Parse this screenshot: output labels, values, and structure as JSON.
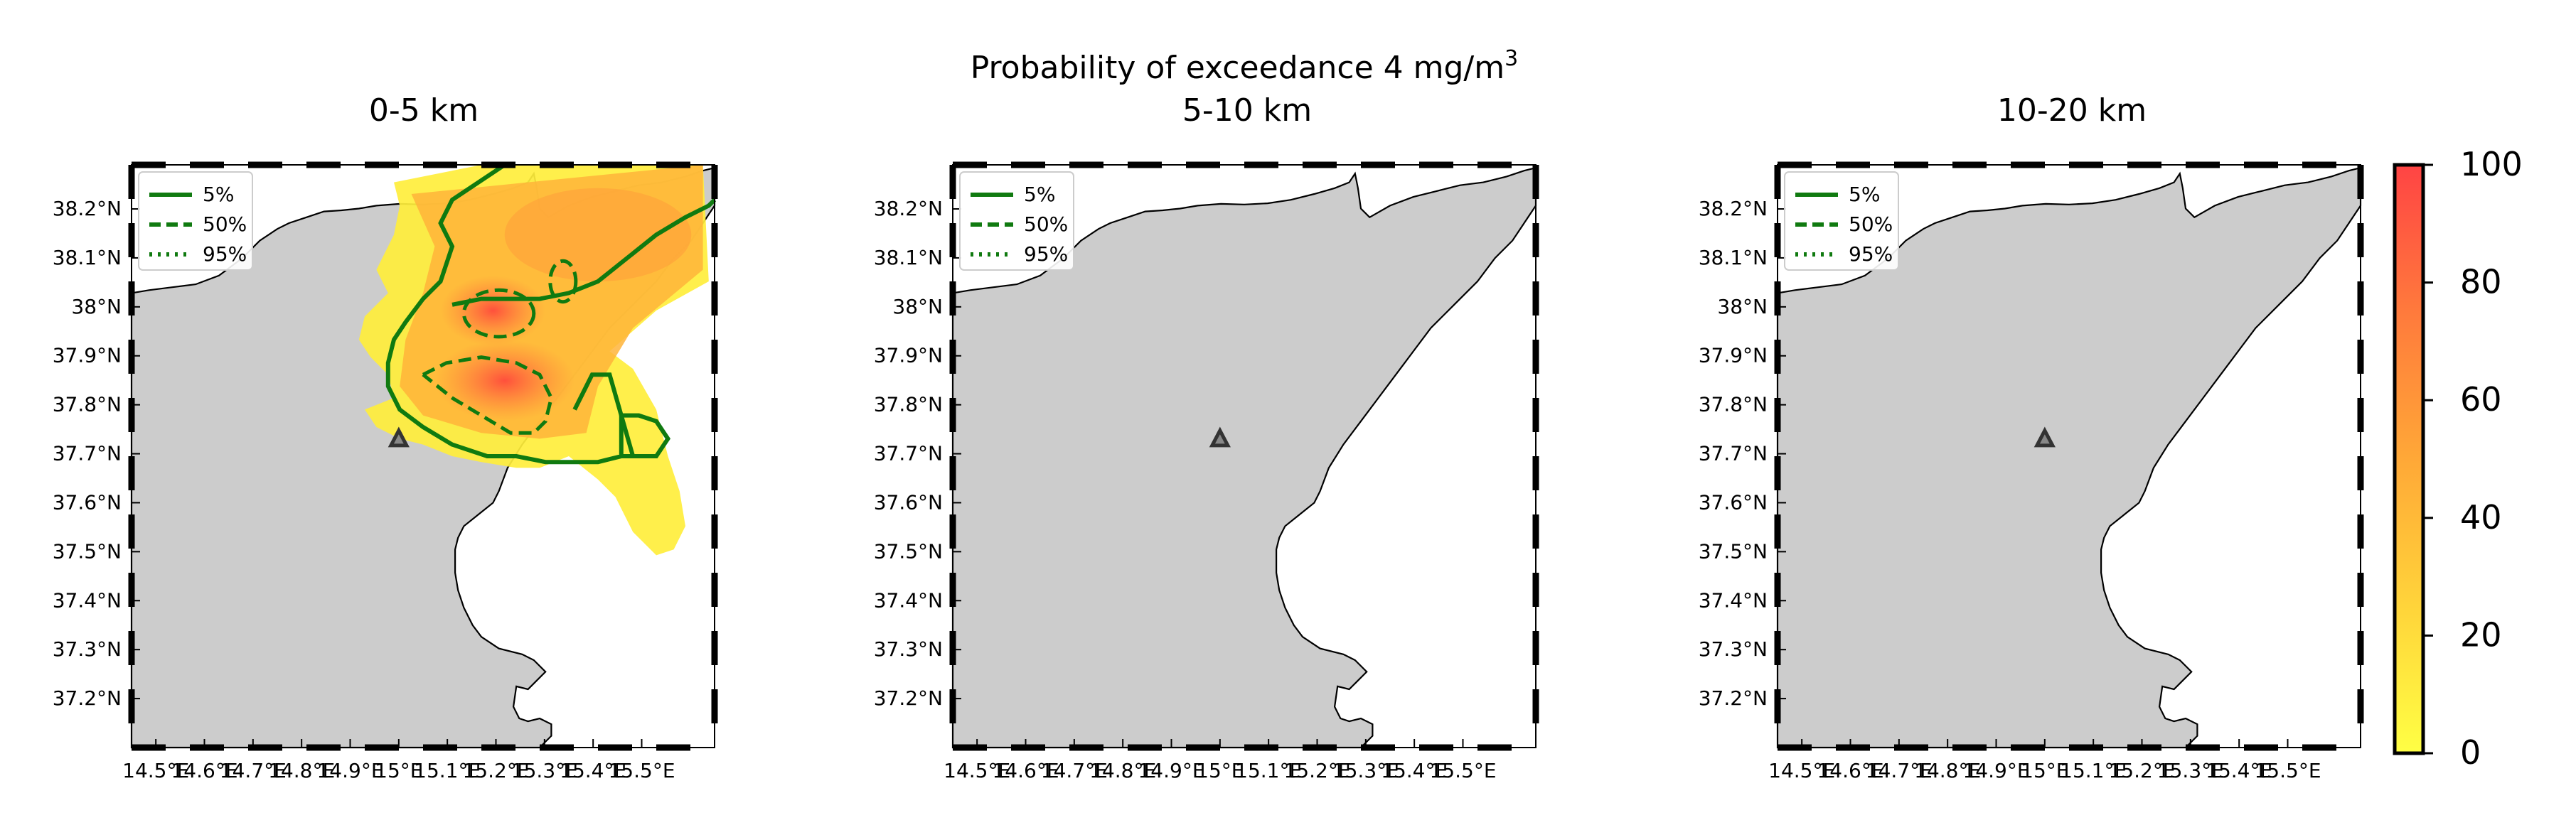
{
  "figure": {
    "title_main": "Probability of exceedance 4 mg/m",
    "title_sup": "3"
  },
  "panels": [
    {
      "title": "0-5 km",
      "has_plume": true
    },
    {
      "title": "5-10 km",
      "has_plume": false
    },
    {
      "title": "10-20 km",
      "has_plume": false
    }
  ],
  "legend": {
    "items": [
      {
        "label": "5%",
        "style": "solid"
      },
      {
        "label": "50%",
        "style": "dashed"
      },
      {
        "label": "95%",
        "style": "dotted"
      }
    ],
    "color": "#107a10"
  },
  "axes": {
    "lon_ticks": [
      "14.5°E",
      "14.6°E",
      "14.7°E",
      "14.8°E",
      "14.9°E",
      "15°E",
      "15.1°E",
      "15.2°E",
      "15.3°E",
      "15.4°E",
      "15.5°E"
    ],
    "lat_ticks": [
      "38.2°N",
      "38.1°N",
      "38°N",
      "37.9°N",
      "37.8°N",
      "37.7°N",
      "37.6°N",
      "37.5°N",
      "37.4°N",
      "37.3°N",
      "37.2°N"
    ],
    "lon_range": [
      14.45,
      15.65
    ],
    "lat_range": [
      37.1,
      38.29
    ]
  },
  "colorbar": {
    "ticks": [
      "100",
      "80",
      "60",
      "40",
      "20",
      "0"
    ],
    "range": [
      0,
      100
    ],
    "colors": [
      "#ffff44",
      "#ff4444"
    ]
  },
  "map": {
    "land_color": "#cccccc",
    "sea_color": "#ffffff",
    "volcano_marker": "triangle-icon",
    "volcano_lonlat": [
      15.0,
      37.73
    ]
  }
}
